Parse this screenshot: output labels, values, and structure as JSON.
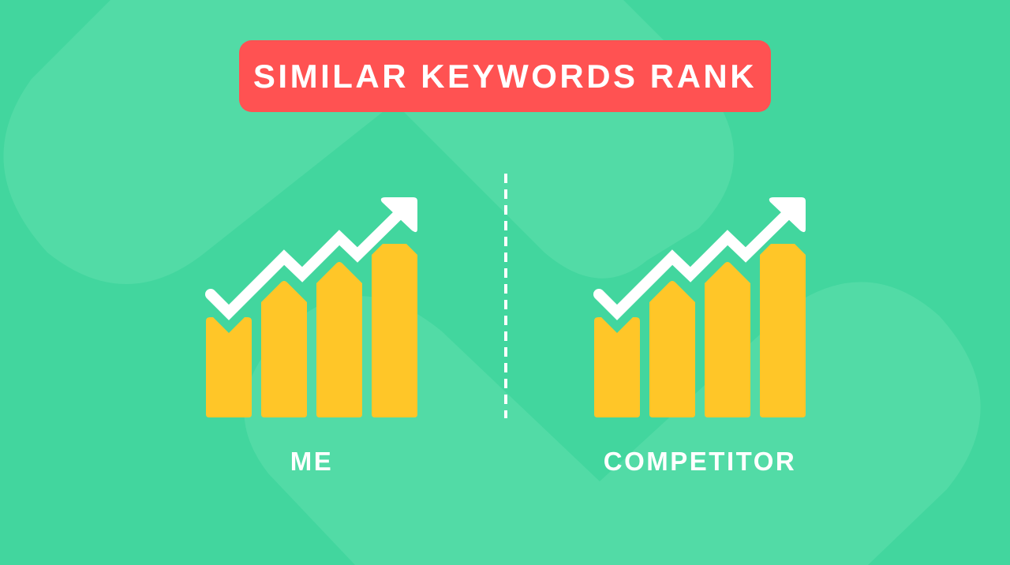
{
  "title": "SIMILAR KEYWORDS RANK",
  "panels": [
    {
      "label": "ME",
      "icon": "bar-chart-trend-up-icon"
    },
    {
      "label": "COMPETITOR",
      "icon": "bar-chart-trend-up-icon"
    }
  ],
  "colors": {
    "background": "#42D69E",
    "background_shape": "#52DBA6",
    "banner": "#FF5252",
    "bars": "#FFC628",
    "trend_line": "#FFFFFF",
    "divider": "#FFFFFF"
  }
}
